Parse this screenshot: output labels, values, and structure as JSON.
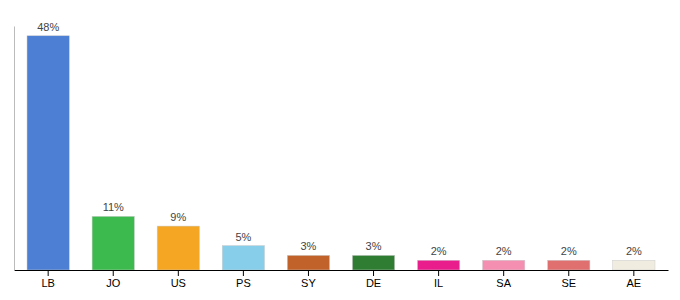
{
  "chart_data": {
    "type": "bar",
    "categories": [
      "LB",
      "JO",
      "US",
      "PS",
      "SY",
      "DE",
      "IL",
      "SA",
      "SE",
      "AE"
    ],
    "values": [
      48,
      11,
      9,
      5,
      3,
      3,
      2,
      2,
      2,
      2
    ],
    "value_labels": [
      "48%",
      "11%",
      "9%",
      "5%",
      "3%",
      "3%",
      "2%",
      "2%",
      "2%",
      "2%"
    ],
    "colors": [
      "#4d7fd4",
      "#3dba4e",
      "#f5a623",
      "#87ceeb",
      "#c0622a",
      "#2e7d32",
      "#e91e8c",
      "#f48fb1",
      "#e07070",
      "#f0ece0"
    ],
    "ylim": [
      0,
      50
    ],
    "data_labels": true,
    "tick_labels": "x",
    "grid": false
  }
}
